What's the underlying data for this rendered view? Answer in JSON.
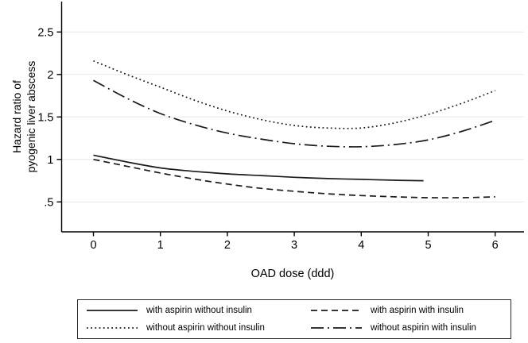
{
  "figure": {
    "background": "#ffffff",
    "x_axis_title": "OAD dose (ddd)"
  },
  "chart_data": {
    "type": "line",
    "title": "",
    "xlabel": "OAD dose (ddd)",
    "ylabel_lines": [
      "Hazard ratio of",
      "pyogenic liver abscess"
    ],
    "xlim": [
      -0.47,
      6.44
    ],
    "ylim": [
      0.28,
      2.86
    ],
    "grid": "horizontal-only",
    "legend_position": "bottom-boxed-two-columns",
    "axis_color": "#000000",
    "grid_color": "#e7e7e7",
    "line_color": "#1a1a1a",
    "x_ticks": [
      {
        "value": 0,
        "label": "0"
      },
      {
        "value": 1,
        "label": "1"
      },
      {
        "value": 2,
        "label": "2"
      },
      {
        "value": 3,
        "label": "3"
      },
      {
        "value": 4,
        "label": "4"
      },
      {
        "value": 5,
        "label": "5"
      },
      {
        "value": 6,
        "label": "6"
      }
    ],
    "y_ticks": [
      {
        "value": 0.5,
        "label": ".5"
      },
      {
        "value": 1,
        "label": "1"
      },
      {
        "value": 1.5,
        "label": "1.5"
      },
      {
        "value": 2,
        "label": "2"
      },
      {
        "value": 2.5,
        "label": "2.5"
      }
    ],
    "series": [
      {
        "name": "with aspirin without insulin",
        "style": "solid",
        "x": [
          0,
          0.5,
          1,
          1.5,
          2,
          2.5,
          3,
          3.5,
          4,
          4.5,
          4.93
        ],
        "y": [
          1.05,
          0.97,
          0.9,
          0.86,
          0.83,
          0.81,
          0.79,
          0.775,
          0.765,
          0.755,
          0.75
        ]
      },
      {
        "name": "with aspirin with insulin",
        "style": "dashed",
        "x": [
          0,
          0.5,
          1,
          1.5,
          2,
          2.5,
          3,
          3.5,
          4,
          4.5,
          5,
          5.5,
          6
        ],
        "y": [
          1.0,
          0.92,
          0.84,
          0.77,
          0.71,
          0.66,
          0.625,
          0.595,
          0.575,
          0.56,
          0.55,
          0.55,
          0.56
        ]
      },
      {
        "name": "without aspirin without insulin",
        "style": "dotted",
        "x": [
          0,
          0.5,
          1,
          1.5,
          2,
          2.5,
          3,
          3.5,
          4,
          4.5,
          5,
          5.5,
          6
        ],
        "y": [
          2.16,
          2.0,
          1.85,
          1.7,
          1.57,
          1.47,
          1.4,
          1.37,
          1.37,
          1.43,
          1.53,
          1.66,
          1.81
        ]
      },
      {
        "name": "without aspirin with insulin",
        "style": "dash-dot",
        "x": [
          0,
          0.5,
          1,
          1.5,
          2,
          2.5,
          3,
          3.5,
          4,
          4.5,
          5,
          5.5,
          6
        ],
        "y": [
          1.93,
          1.72,
          1.54,
          1.41,
          1.31,
          1.24,
          1.185,
          1.155,
          1.15,
          1.175,
          1.23,
          1.33,
          1.46
        ]
      }
    ]
  }
}
